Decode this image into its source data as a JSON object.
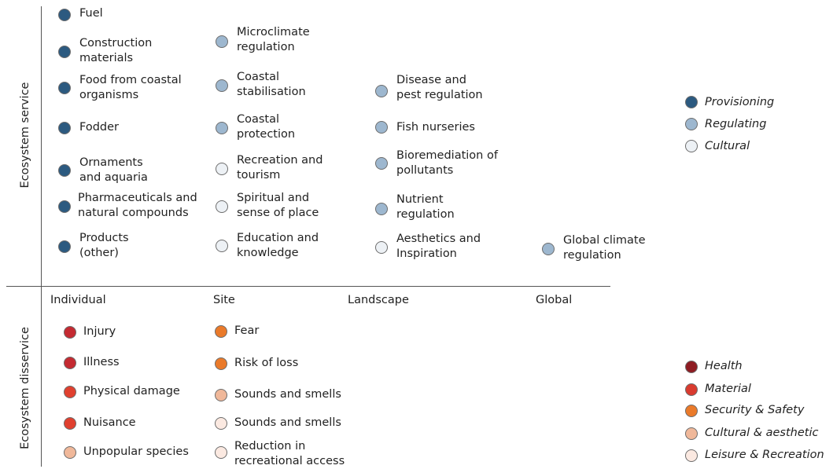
{
  "axes": {
    "service_label": "Ecosystem service",
    "disservice_label": "Ecosystem disservice",
    "scales": [
      "Individual",
      "Site",
      "Landscape",
      "Global"
    ]
  },
  "colors": {
    "provisioning": "#2c5a80",
    "regulating": "#9db7cf",
    "cultural": "#edf1f5",
    "health": "#8e1c22",
    "material": "#d93b2f",
    "security": "#ea7a2a",
    "cultural_aesthetic": "#f0b89a",
    "leisure": "#fbe9e1",
    "injury_illness": "#c42a31",
    "physical_nuisance": "#e0402f"
  },
  "services": {
    "individual": [
      {
        "label": "Fuel"
      },
      {
        "label": "Construction\nmaterials"
      },
      {
        "label": "Food from coastal\norganisms"
      },
      {
        "label": "Fodder"
      },
      {
        "label": "Ornaments\nand aquaria"
      },
      {
        "label": "Pharmaceuticals and\nnatural compounds"
      },
      {
        "label": "Products\n(other)"
      }
    ],
    "site": [
      {
        "label": "Microclimate\nregulation"
      },
      {
        "label": "Coastal\nstabilisation"
      },
      {
        "label": "Coastal\nprotection"
      },
      {
        "label": "Recreation and\ntourism"
      },
      {
        "label": "Spiritual and\nsense of place"
      },
      {
        "label": "Education and\nknowledge"
      }
    ],
    "landscape": [
      {
        "label": "Disease and\npest regulation"
      },
      {
        "label": "Fish nurseries"
      },
      {
        "label": "Bioremediation of\npollutants"
      },
      {
        "label": "Nutrient\nregulation"
      },
      {
        "label": "Aesthetics and\nInspiration"
      }
    ],
    "global": [
      {
        "label": "Global climate\nregulation"
      }
    ]
  },
  "disservices": {
    "individual": [
      {
        "label": "Injury"
      },
      {
        "label": "Illness"
      },
      {
        "label": "Physical damage"
      },
      {
        "label": "Nuisance"
      },
      {
        "label": "Unpopular species"
      }
    ],
    "site": [
      {
        "label": "Fear"
      },
      {
        "label": "Risk of loss"
      },
      {
        "label": "Sounds and smells"
      },
      {
        "label": "Sounds and smells"
      },
      {
        "label": "Reduction in\nrecreational access"
      }
    ]
  },
  "legend_services": [
    {
      "label": "Provisioning"
    },
    {
      "label": "Regulating"
    },
    {
      "label": "Cultural"
    }
  ],
  "legend_disservices": [
    {
      "label": "Health"
    },
    {
      "label": "Material"
    },
    {
      "label": "Security & Safety"
    },
    {
      "label": "Cultural & aesthetic"
    },
    {
      "label": "Leisure & Recreation"
    }
  ]
}
